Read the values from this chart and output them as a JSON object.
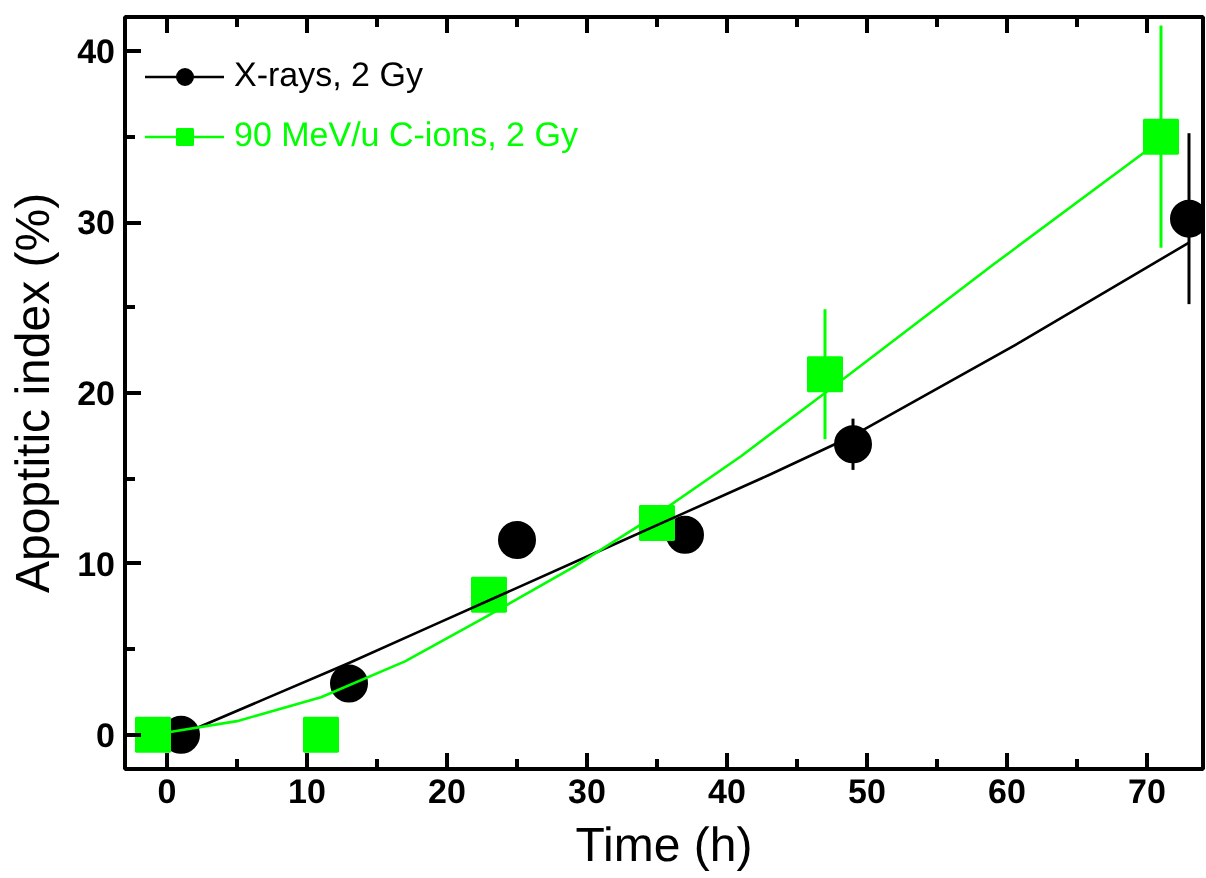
{
  "chart_data": {
    "type": "scatter",
    "xlabel": "Time (h)",
    "ylabel": "Apoptitic index (%)",
    "xlim": [
      -3,
      74
    ],
    "ylim": [
      -2,
      42
    ],
    "xticks": [
      0,
      10,
      20,
      30,
      40,
      50,
      60,
      70
    ],
    "yticks": [
      0,
      10,
      20,
      30,
      40
    ],
    "grid": false,
    "legend": "top left",
    "series": [
      {
        "name": "X-rays, 2 Gy",
        "marker": "circle",
        "color": "#000000",
        "x": [
          1,
          13,
          25,
          37,
          49,
          73
        ],
        "values": [
          0,
          3,
          11.4,
          11.7,
          17,
          30.2
        ],
        "errors": [
          null,
          null,
          null,
          0.8,
          1.5,
          5
        ]
      },
      {
        "name": "90 MeV/u C-ions, 2 Gy",
        "marker": "square",
        "color": "#00ff00",
        "x": [
          -1,
          11,
          23,
          35,
          47,
          71
        ],
        "values": [
          0,
          0,
          8.2,
          12.4,
          21.1,
          35
        ],
        "errors": [
          null,
          null,
          null,
          1,
          3.8,
          6.5
        ]
      },
      {
        "type": "line",
        "color": "#000000",
        "x": [
          1,
          7,
          13,
          19,
          25,
          31,
          37,
          43,
          49,
          61,
          73
        ],
        "values": [
          0,
          2.1,
          4.2,
          6.4,
          8.6,
          10.8,
          13.0,
          15.2,
          17.5,
          23.0,
          28.8
        ]
      },
      {
        "type": "line",
        "color": "#00ff00",
        "x": [
          -1,
          5,
          11,
          17,
          23,
          29,
          35,
          41,
          47,
          59,
          71
        ],
        "values": [
          0,
          0.8,
          2.2,
          4.3,
          7.0,
          9.8,
          12.9,
          16.3,
          20.0,
          27.5,
          34.8
        ]
      }
    ]
  }
}
